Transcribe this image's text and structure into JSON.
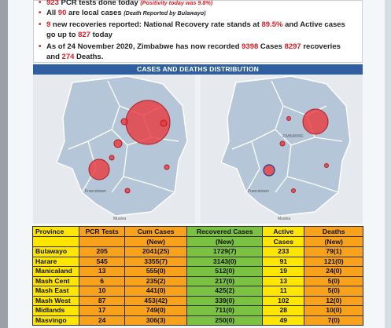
{
  "bullets": [
    {
      "number": "923",
      "text": " PCR tests done today ",
      "note": "(Positivity today was 9.8%)"
    },
    {
      "prefix": "All ",
      "number": "90",
      "text": " are local cases ",
      "note": "(Death Reported by Bulawayo)"
    },
    {
      "number": "9",
      "text": " new recoveries reported: National Recovery rate stands at ",
      "rate": "89.5%",
      "text2": " and Active cases",
      "line2a": "go up to ",
      "active": "827",
      "line2b": " today"
    },
    {
      "text": "As of 24 November 2020, Zimbabwe has now recorded ",
      "cases": "9398",
      "text2": " Cases ",
      "recoveries": "8297",
      "text3": " recoveries",
      "line2a": "and ",
      "deaths": "274",
      "line2b": " Deaths."
    }
  ],
  "banner": "CASES AND DEATHS DISTRIBUTION",
  "maps": {
    "left": {
      "labels": [
        "Francistown",
        "Musina"
      ]
    },
    "right": {
      "labels": [
        "Francistown",
        "Musina",
        "ZIMBABWE"
      ]
    }
  },
  "table": {
    "headers": [
      [
        "Province",
        ""
      ],
      [
        "PCR Tests",
        ""
      ],
      [
        "Cum Cases",
        "(New)"
      ],
      [
        "Recovered Cases",
        "(New)"
      ],
      [
        "Active",
        "Cases"
      ],
      [
        "Deaths",
        "(New)"
      ]
    ],
    "rows": [
      [
        "Bulawayo",
        "205",
        "2041(25)",
        "1729(7)",
        "233",
        "79(1)"
      ],
      [
        "Harare",
        "545",
        "3355(7)",
        "3143(0)",
        "91",
        "121(0)"
      ],
      [
        "Manicaland",
        "13",
        "555(0)",
        "512(0)",
        "19",
        "24(0)"
      ],
      [
        "Mash Cent",
        "6",
        "235(2)",
        "217(0)",
        "13",
        "5(0)"
      ],
      [
        "Mash East",
        "10",
        "441(0)",
        "425(2)",
        "11",
        "5(0)"
      ],
      [
        "Mash West",
        "87",
        "453(42)",
        "339(0)",
        "102",
        "12(0)"
      ],
      [
        "Midlands",
        "17",
        "749(0)",
        "711(0)",
        "28",
        "10(0)"
      ],
      [
        "Masvingo",
        "24",
        "306(3)",
        "250(0)",
        "49",
        "7(0)"
      ]
    ]
  },
  "colors": {
    "banner": "#2f5f9e",
    "bubble": "#e8383d",
    "province_col": "#ffe600",
    "orange_col": "#f7a21a",
    "green_col": "#7cc242"
  }
}
